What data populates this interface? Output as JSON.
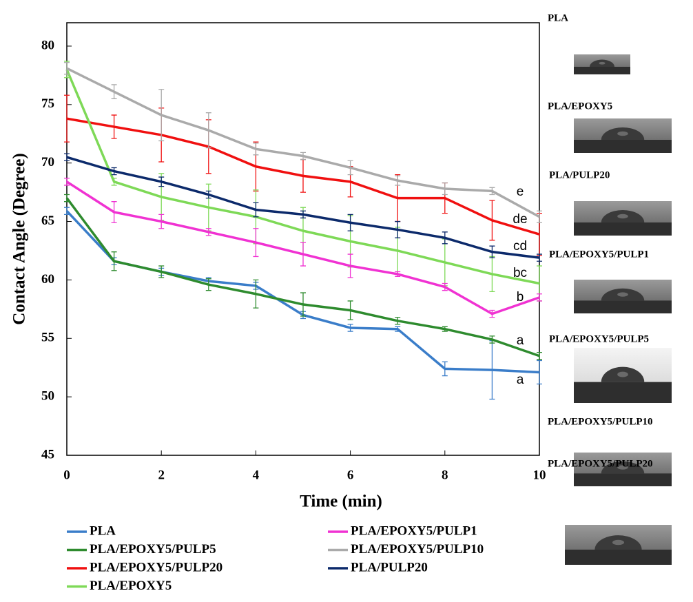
{
  "chart_data": {
    "type": "line",
    "x_label": "Time (min)",
    "y_label": "Contact Angle (Degree)",
    "x": [
      0,
      1,
      2,
      3,
      4,
      5,
      6,
      7,
      8,
      9,
      10
    ],
    "xlim": [
      0,
      10
    ],
    "xticks": [
      0,
      2,
      4,
      6,
      8,
      10
    ],
    "ylim": [
      45,
      82
    ],
    "yticks": [
      45,
      50,
      55,
      60,
      65,
      70,
      75,
      80
    ],
    "series": [
      {
        "name": "PLA",
        "color": "#3a7dc9",
        "values": [
          65.9,
          61.6,
          60.7,
          59.9,
          59.5,
          57.0,
          55.9,
          55.8,
          52.4,
          52.3,
          52.1
        ],
        "errors": [
          0.3,
          0.3,
          0.3,
          0.3,
          0.3,
          0.3,
          0.3,
          0.2,
          0.6,
          2.5,
          1.0
        ]
      },
      {
        "name": "PLA/EPOXY5/PULP5",
        "color": "#2e8b2e",
        "values": [
          67.0,
          61.6,
          60.7,
          59.6,
          58.8,
          57.9,
          57.4,
          56.5,
          55.8,
          54.9,
          53.5
        ],
        "errors": [
          0.3,
          0.8,
          0.5,
          0.5,
          1.2,
          1.0,
          0.8,
          0.3,
          0.2,
          0.3,
          0.3
        ]
      },
      {
        "name": "PLA/EPOXY5/PULP20",
        "color": "#f01010",
        "values": [
          73.8,
          73.1,
          72.4,
          71.4,
          69.7,
          68.9,
          68.4,
          67.0,
          67.0,
          65.1,
          63.9
        ],
        "errors": [
          2.0,
          1.0,
          2.3,
          2.3,
          2.1,
          1.4,
          1.3,
          2.0,
          1.3,
          1.7,
          1.8
        ]
      },
      {
        "name": "PLA/EPOXY5",
        "color": "#7ed957",
        "values": [
          78.0,
          68.4,
          67.1,
          66.2,
          65.4,
          64.2,
          63.3,
          62.5,
          61.5,
          60.5,
          59.7
        ],
        "errors": [
          0.7,
          0.3,
          2.0,
          2.0,
          2.3,
          2.0,
          2.2,
          2.0,
          2.0,
          1.5,
          1.5
        ]
      },
      {
        "name": "PLA/EPOXY5/PULP1",
        "color": "#f032d2",
        "values": [
          68.4,
          65.8,
          65.0,
          64.1,
          63.2,
          62.2,
          61.2,
          60.5,
          59.4,
          57.1,
          58.5
        ],
        "errors": [
          0.3,
          0.9,
          0.6,
          0.3,
          1.2,
          1.0,
          1.0,
          0.2,
          0.3,
          0.3,
          0.3
        ]
      },
      {
        "name": "PLA/EPOXY5/PULP10",
        "color": "#aaaaaa",
        "values": [
          78.1,
          76.1,
          74.1,
          72.8,
          71.2,
          70.6,
          69.6,
          68.5,
          67.8,
          67.6,
          65.4
        ],
        "errors": [
          0.5,
          0.6,
          2.2,
          1.5,
          0.5,
          0.3,
          0.6,
          0.4,
          0.5,
          0.3,
          0.5
        ]
      },
      {
        "name": "PLA/PULP20",
        "color": "#0c2a6b",
        "values": [
          70.5,
          69.3,
          68.4,
          67.3,
          66.0,
          65.6,
          64.9,
          64.3,
          63.6,
          62.4,
          61.9
        ],
        "errors": [
          0.3,
          0.3,
          0.4,
          0.3,
          0.6,
          0.3,
          0.7,
          0.7,
          0.5,
          0.5,
          0.3
        ]
      }
    ],
    "annotations": [
      "e",
      "de",
      "cd",
      "bc",
      "b",
      "a",
      "a"
    ]
  },
  "side_panel": {
    "labels": [
      "PLA",
      "PLA/EPOXY5",
      "PLA/PULP20",
      "PLA/EPOXY5/PULP1",
      "PLA/EPOXY5/PULP5",
      "PLA/EPOXY5/PULP10",
      "PLA/EPOXY5/PULP20"
    ]
  }
}
